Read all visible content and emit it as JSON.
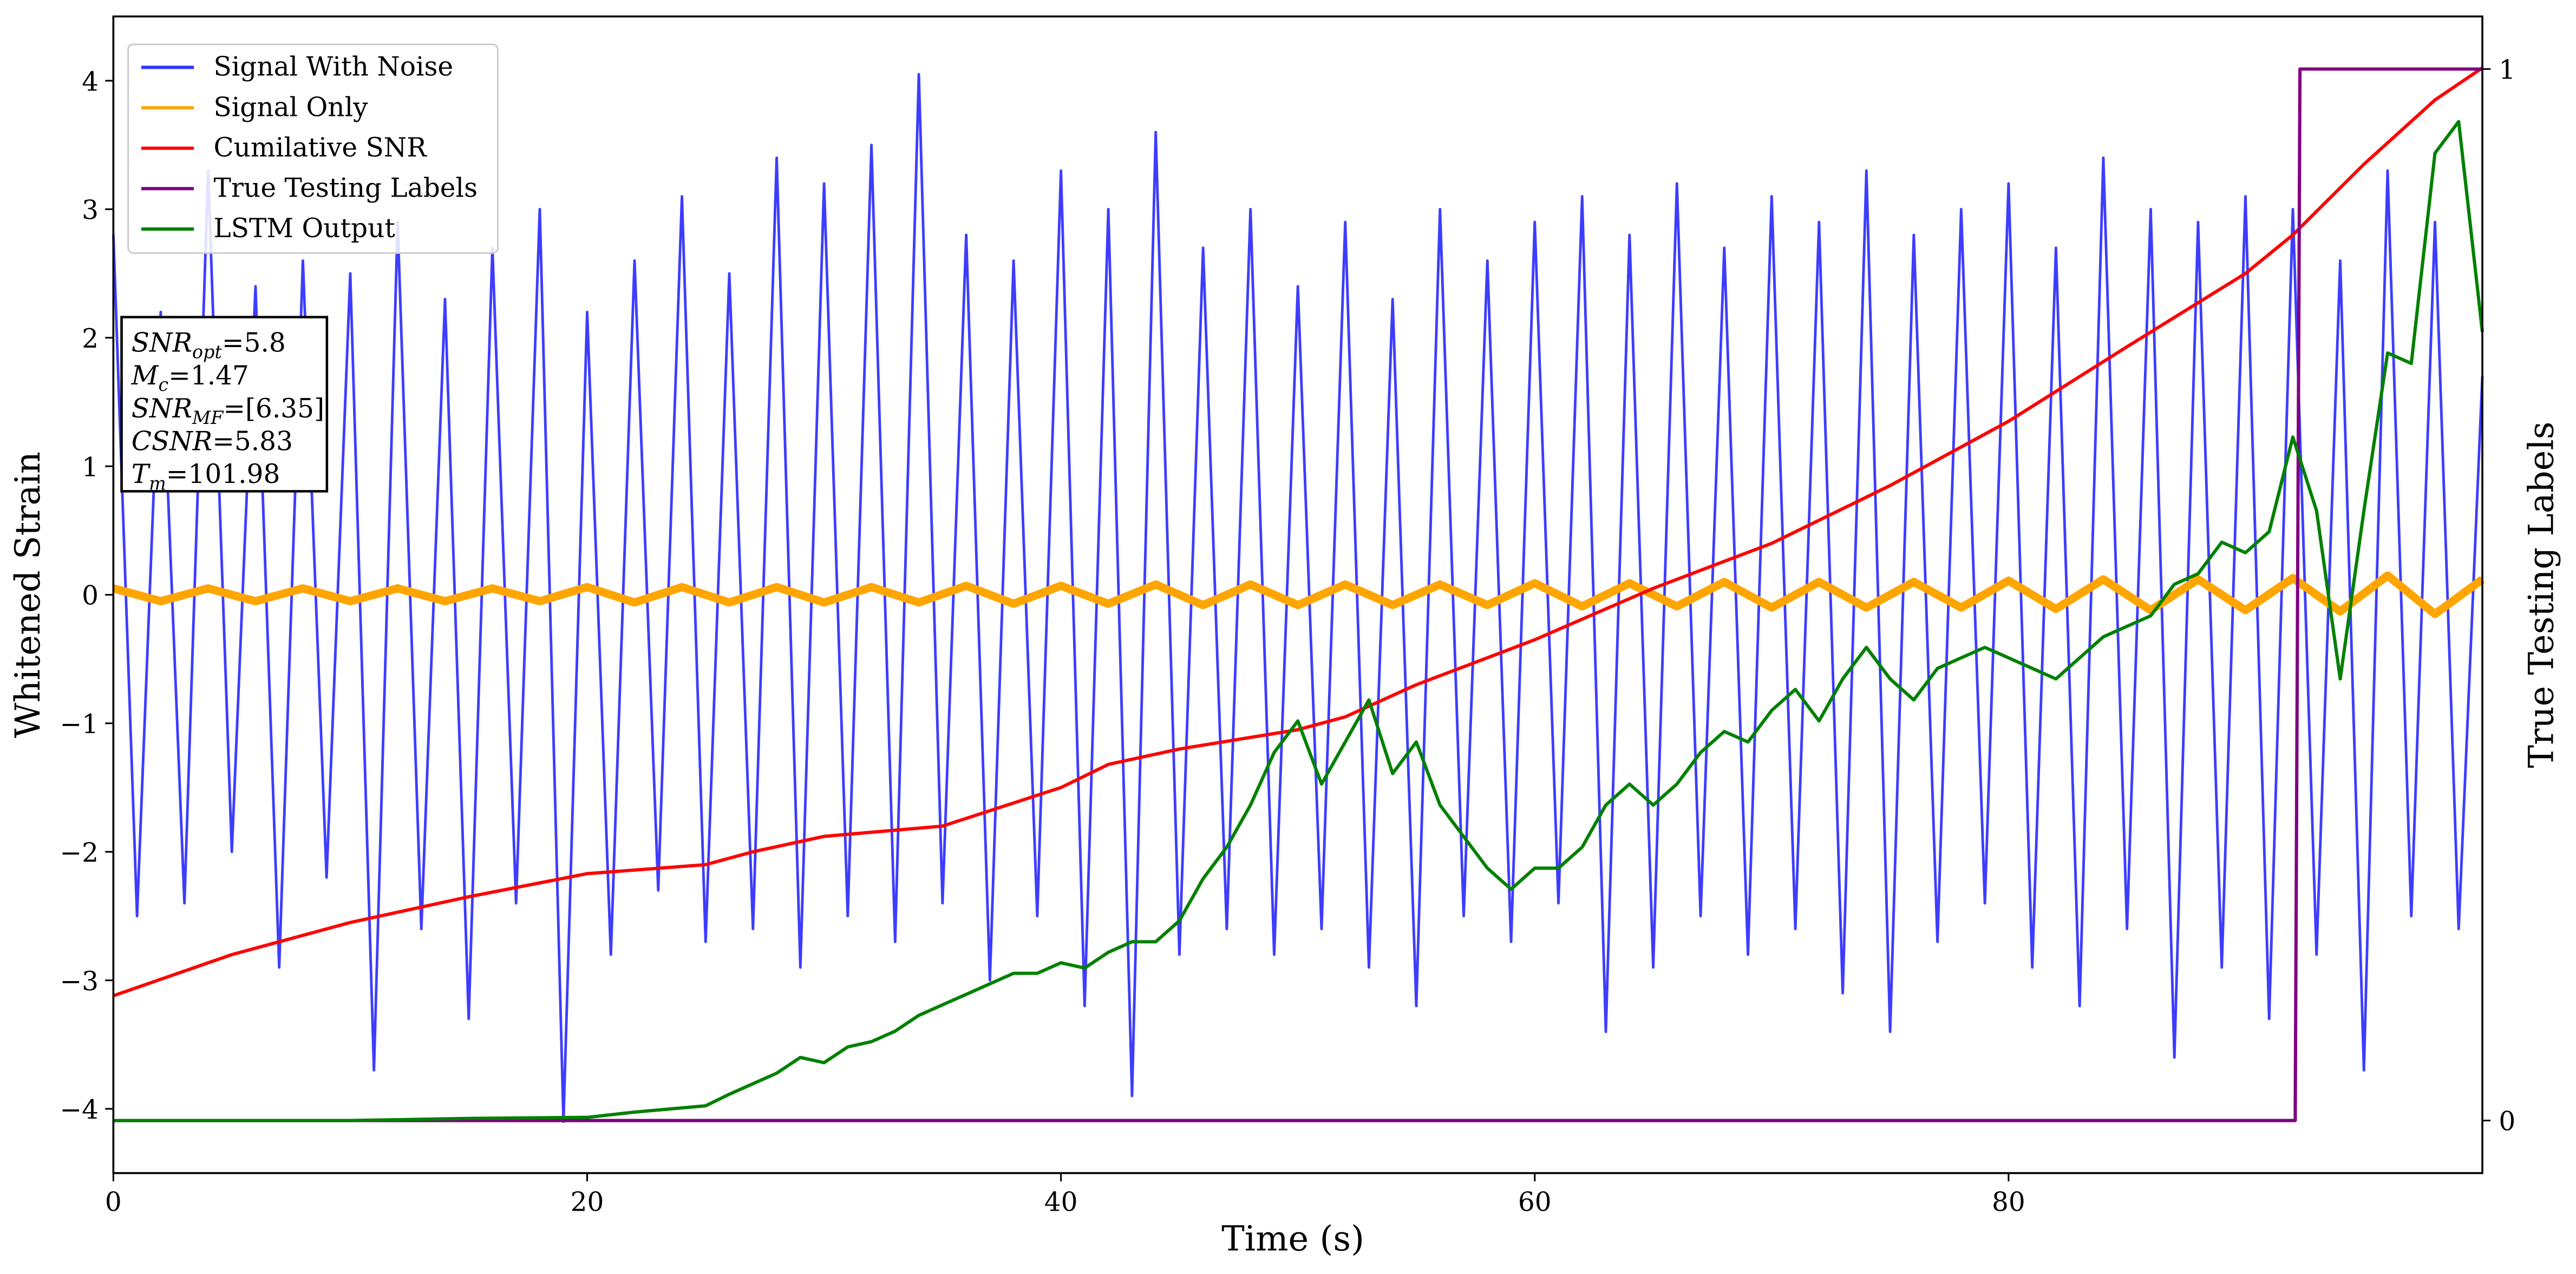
{
  "chart_data": {
    "type": "line",
    "xlabel": "Time (s)",
    "ylabel": "Whitened Strain",
    "y2label": "True Testing Labels",
    "xlim": [
      0,
      100
    ],
    "xticks": [
      0,
      20,
      40,
      60,
      80
    ],
    "ylim": [
      -4.5,
      4.5
    ],
    "yticks": [
      {
        "value": -4,
        "label": "−4"
      },
      {
        "value": -3,
        "label": "−3"
      },
      {
        "value": -2,
        "label": "−2"
      },
      {
        "value": -1,
        "label": "−1"
      },
      0,
      1,
      2,
      3,
      4
    ],
    "y2lim": [
      -0.05,
      1.05
    ],
    "y2ticks": [
      0,
      1
    ],
    "legend": "upper left",
    "series": [
      {
        "name": "Signal With Noise",
        "color": "#3333ff",
        "x": [
          0,
          1,
          2,
          3,
          4,
          5,
          6,
          7,
          8,
          9,
          10,
          11,
          12,
          13,
          14,
          15,
          16,
          17,
          18,
          19,
          20,
          21,
          22,
          23,
          24,
          25,
          26,
          27,
          28,
          29,
          30,
          31,
          32,
          33,
          34,
          35,
          36,
          37,
          38,
          39,
          40,
          41,
          42,
          43,
          44,
          45,
          46,
          47,
          48,
          49,
          50,
          51,
          52,
          53,
          54,
          55,
          56,
          57,
          58,
          59,
          60,
          61,
          62,
          63,
          64,
          65,
          66,
          67,
          68,
          69,
          70,
          71,
          72,
          73,
          74,
          75,
          76,
          77,
          78,
          79,
          80,
          81,
          82,
          83,
          84,
          85,
          86,
          87,
          88,
          89,
          90,
          91,
          92,
          93,
          94,
          95,
          96,
          97,
          98,
          99,
          100
        ],
        "values": [
          2.8,
          -2.5,
          2.2,
          -2.4,
          3.3,
          -2.0,
          2.4,
          -2.9,
          2.6,
          -2.2,
          2.5,
          -3.7,
          2.9,
          -2.6,
          2.3,
          -3.3,
          2.7,
          -2.4,
          3.0,
          -4.1,
          2.2,
          -2.8,
          2.6,
          -2.3,
          3.1,
          -2.7,
          2.5,
          -2.6,
          3.4,
          -2.9,
          3.2,
          -2.5,
          3.5,
          -2.7,
          4.05,
          -2.4,
          2.8,
          -3.0,
          2.6,
          -2.5,
          3.3,
          -3.2,
          3.0,
          -3.9,
          3.6,
          -2.8,
          2.7,
          -2.6,
          3.0,
          -2.8,
          2.4,
          -2.6,
          2.9,
          -2.9,
          2.3,
          -3.2,
          3.0,
          -2.5,
          2.6,
          -2.7,
          2.9,
          -2.4,
          3.1,
          -3.4,
          2.8,
          -2.9,
          3.2,
          -2.5,
          2.7,
          -2.8,
          3.1,
          -2.6,
          2.9,
          -3.1,
          3.3,
          -3.4,
          2.8,
          -2.7,
          3.0,
          -2.4,
          3.2,
          -2.9,
          2.7,
          -3.2,
          3.4,
          -2.6,
          3.0,
          -3.6,
          2.9,
          -2.9,
          3.1,
          -3.3,
          3.0,
          -2.8,
          2.6,
          -3.7,
          3.3,
          -2.5,
          2.9,
          -2.6,
          1.7
        ]
      },
      {
        "name": "Signal Only",
        "color": "#ffa500",
        "x": [
          0,
          2,
          4,
          6,
          8,
          10,
          12,
          14,
          16,
          18,
          20,
          22,
          24,
          26,
          28,
          30,
          32,
          34,
          36,
          38,
          40,
          42,
          44,
          46,
          48,
          50,
          52,
          54,
          56,
          58,
          60,
          62,
          64,
          66,
          68,
          70,
          72,
          74,
          76,
          78,
          80,
          82,
          84,
          86,
          88,
          90,
          92,
          94,
          96,
          98,
          100
        ],
        "values": [
          0.05,
          -0.05,
          0.05,
          -0.05,
          0.05,
          -0.05,
          0.05,
          -0.05,
          0.05,
          -0.05,
          0.06,
          -0.06,
          0.06,
          -0.06,
          0.06,
          -0.06,
          0.06,
          -0.06,
          0.07,
          -0.07,
          0.07,
          -0.07,
          0.08,
          -0.08,
          0.08,
          -0.08,
          0.08,
          -0.08,
          0.08,
          -0.08,
          0.09,
          -0.09,
          0.09,
          -0.09,
          0.1,
          -0.1,
          0.1,
          -0.1,
          0.1,
          -0.1,
          0.11,
          -0.11,
          0.12,
          -0.12,
          0.12,
          -0.12,
          0.13,
          -0.13,
          0.15,
          -0.15,
          0.12
        ]
      },
      {
        "name": "Cumilative SNR",
        "color": "#ff0000",
        "x": [
          0,
          5,
          10,
          15,
          20,
          25,
          27,
          30,
          35,
          40,
          42,
          45,
          50,
          52,
          55,
          60,
          65,
          70,
          75,
          80,
          85,
          90,
          92,
          95,
          98,
          100
        ],
        "values": [
          -3.12,
          -2.8,
          -2.55,
          -2.35,
          -2.17,
          -2.1,
          -2.0,
          -1.88,
          -1.8,
          -1.5,
          -1.32,
          -1.2,
          -1.05,
          -0.95,
          -0.7,
          -0.35,
          0.05,
          0.4,
          0.85,
          1.35,
          1.93,
          2.5,
          2.8,
          3.35,
          3.85,
          4.1
        ]
      },
      {
        "name": "True Testing Labels",
        "color": "#800080",
        "axis": "y2",
        "x": [
          0,
          92.1,
          92.3,
          100
        ],
        "values": [
          0,
          0,
          1,
          1
        ]
      },
      {
        "name": "LSTM Output",
        "color": "#008000",
        "axis": "y2",
        "x": [
          0,
          10,
          15,
          20,
          22,
          25,
          26,
          28,
          29,
          30,
          31,
          32,
          33,
          34,
          35,
          36,
          37,
          38,
          39,
          40,
          41,
          42,
          43,
          44,
          45,
          46,
          47,
          48,
          49,
          50,
          51,
          52,
          53,
          54,
          55,
          56,
          57,
          58,
          59,
          60,
          61,
          62,
          63,
          64,
          65,
          66,
          67,
          68,
          69,
          70,
          71,
          72,
          73,
          74,
          75,
          76,
          77,
          78,
          79,
          80,
          81,
          82,
          83,
          84,
          85,
          86,
          87,
          88,
          89,
          90,
          91,
          92,
          93,
          94,
          95,
          96,
          97,
          98,
          99,
          100
        ],
        "values": [
          0,
          0,
          0.002,
          0.003,
          0.008,
          0.014,
          0.025,
          0.045,
          0.06,
          0.055,
          0.07,
          0.075,
          0.085,
          0.1,
          0.11,
          0.12,
          0.13,
          0.14,
          0.14,
          0.15,
          0.145,
          0.16,
          0.17,
          0.17,
          0.19,
          0.23,
          0.26,
          0.3,
          0.35,
          0.38,
          0.32,
          0.36,
          0.4,
          0.33,
          0.36,
          0.3,
          0.27,
          0.24,
          0.22,
          0.24,
          0.24,
          0.26,
          0.3,
          0.32,
          0.3,
          0.32,
          0.35,
          0.37,
          0.36,
          0.39,
          0.41,
          0.38,
          0.42,
          0.45,
          0.42,
          0.4,
          0.43,
          0.44,
          0.45,
          0.44,
          0.43,
          0.42,
          0.44,
          0.46,
          0.47,
          0.48,
          0.51,
          0.52,
          0.55,
          0.54,
          0.56,
          0.65,
          0.58,
          0.42,
          0.58,
          0.73,
          0.72,
          0.92,
          0.95,
          0.75
        ]
      }
    ],
    "annotations": [
      {
        "main": "SNR",
        "sub": "opt",
        "rest": "=5.8"
      },
      {
        "main": "M",
        "sub": "c",
        "rest": "=1.47"
      },
      {
        "main": "SNR",
        "sub": "MF",
        "rest": "=[6.35]"
      },
      {
        "main": "CSNR",
        "rest": "=5.83"
      },
      {
        "main": "T",
        "sub": "m",
        "rest": "=101.98"
      }
    ]
  }
}
